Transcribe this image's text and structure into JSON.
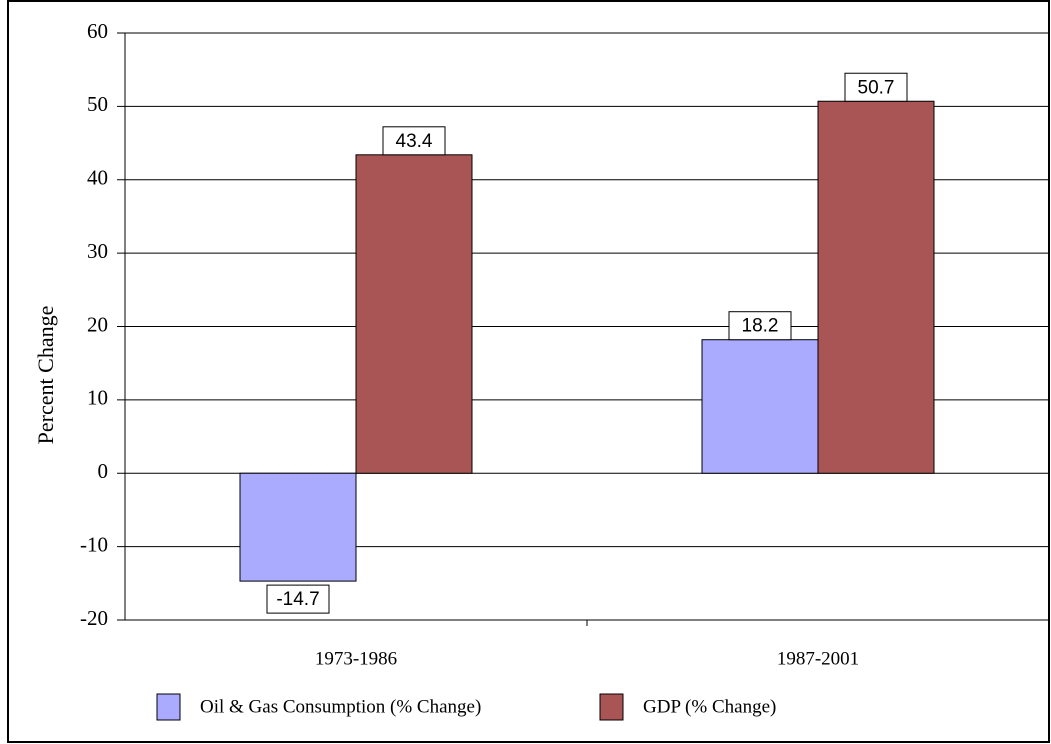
{
  "chart_data": {
    "type": "bar",
    "y_label": "Percent Change",
    "categories": [
      "1973-1986",
      "1987-2001"
    ],
    "series": [
      {
        "name": "Oil & Gas Consumption (% Change)",
        "color": "#aaaaff",
        "values": [
          -14.7,
          18.2
        ]
      },
      {
        "name": "GDP (% Change)",
        "color": "#aa5555",
        "values": [
          43.4,
          50.7
        ]
      }
    ],
    "ylim": [
      -20,
      60
    ],
    "yticks": [
      -20,
      -10,
      0,
      10,
      20,
      30,
      40,
      50,
      60
    ],
    "grid": true,
    "legend": "bottom"
  }
}
